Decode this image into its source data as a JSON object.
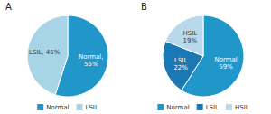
{
  "chart_data": [
    {
      "type": "pie",
      "title": "A",
      "categories": [
        "Normal",
        "LSIL"
      ],
      "values": [
        55,
        45
      ],
      "value_labels": [
        "Normal,\n55%",
        "LSIL, 45%"
      ],
      "colors": [
        "#2196C9",
        "#A8D4E8"
      ],
      "data_labels": true,
      "legend": "bottom"
    },
    {
      "type": "pie",
      "title": "B",
      "categories": [
        "Normal",
        "LSIL",
        "HSIL"
      ],
      "values": [
        59,
        22,
        19
      ],
      "value_labels": [
        "Normal\n59%",
        "LSIL\n22%",
        "HSIL\n19%"
      ],
      "colors": [
        "#2196C9",
        "#1A78B4",
        "#B8D9EC"
      ],
      "data_labels": true,
      "legend": "bottom"
    }
  ]
}
